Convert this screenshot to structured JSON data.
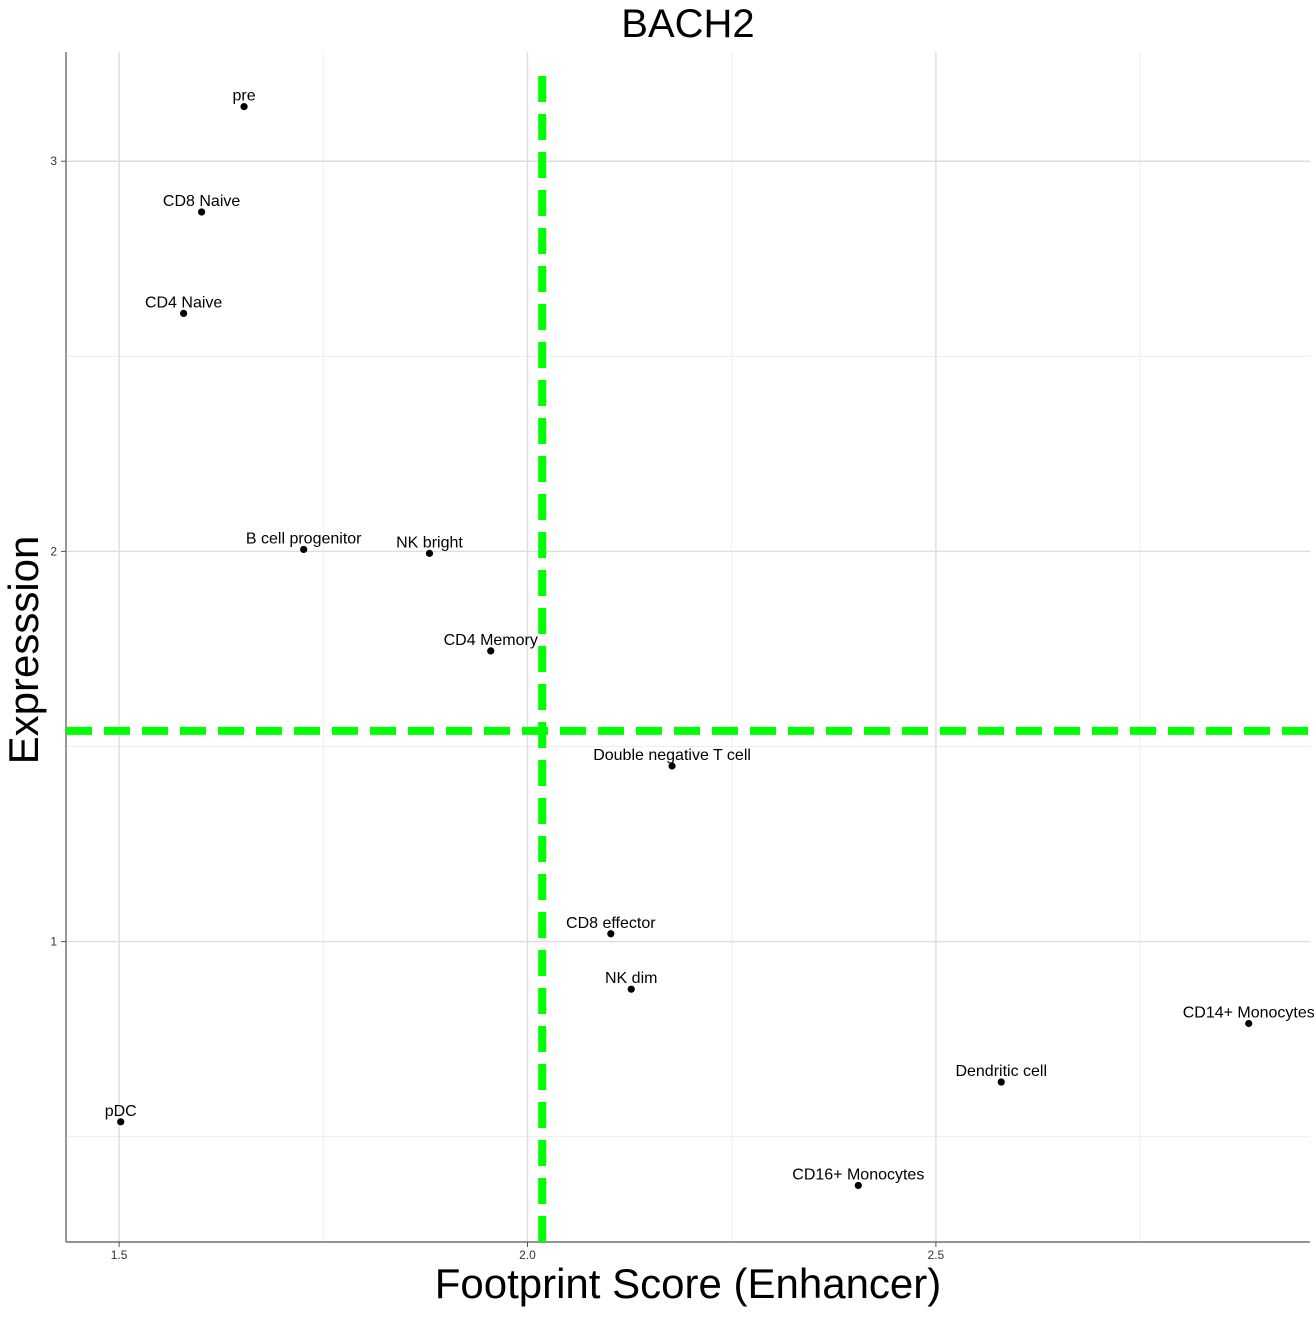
{
  "chart_data": {
    "type": "scatter",
    "title": "BACH2",
    "xlabel": "Footprint Score (Enhancer)",
    "ylabel": "Expresssion",
    "xlim": [
      1.435,
      2.958
    ],
    "ylim": [
      0.23,
      3.28
    ],
    "x_ticks": [
      1.5,
      2.0,
      2.5
    ],
    "x_tick_labels": [
      "1.5",
      "2.0",
      "2.5"
    ],
    "y_ticks": [
      1,
      2,
      3
    ],
    "y_tick_labels": [
      "1",
      "2",
      "3"
    ],
    "grid": true,
    "reference_lines": {
      "vertical_x": 2.018,
      "horizontal_y": 1.54,
      "color": "#00ff00",
      "style": "dashed"
    },
    "point_color": "#000000",
    "points": [
      {
        "label": "pre",
        "x": 1.653,
        "y": 3.14
      },
      {
        "label": "CD8 Naive",
        "x": 1.601,
        "y": 2.87
      },
      {
        "label": "CD4 Naive",
        "x": 1.579,
        "y": 2.61
      },
      {
        "label": "B cell progenitor",
        "x": 1.726,
        "y": 2.005
      },
      {
        "label": "NK bright",
        "x": 1.88,
        "y": 1.995
      },
      {
        "label": "CD4 Memory",
        "x": 1.955,
        "y": 1.745
      },
      {
        "label": "Double negative T cell",
        "x": 2.177,
        "y": 1.45
      },
      {
        "label": "CD8 effector",
        "x": 2.102,
        "y": 1.02
      },
      {
        "label": "NK dim",
        "x": 2.127,
        "y": 0.878
      },
      {
        "label": "CD14+ Monocytes",
        "x": 2.883,
        "y": 0.79
      },
      {
        "label": "Dendritic cell",
        "x": 2.58,
        "y": 0.64
      },
      {
        "label": "pDC",
        "x": 1.502,
        "y": 0.538
      },
      {
        "label": "CD16+ Monocytes",
        "x": 2.405,
        "y": 0.375
      }
    ]
  }
}
